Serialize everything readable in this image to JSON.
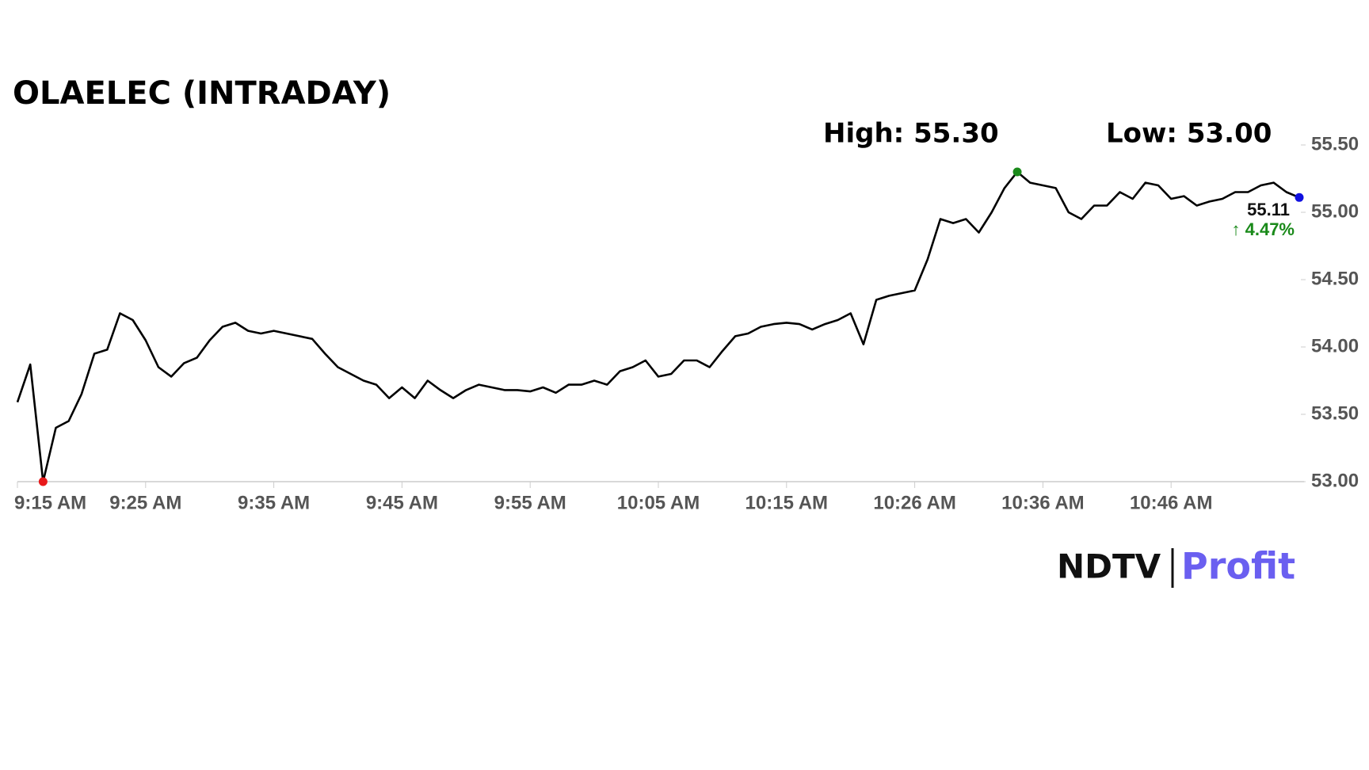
{
  "chart_data": {
    "type": "line",
    "title": "OLAELEC (INTRADAY)",
    "high_label": "High: 55.30",
    "low_label": "Low: 53.00",
    "change_label": "↑ 4.47%",
    "change_color": "#1a8a1a",
    "logo": {
      "left": "NDTV",
      "right": "Profit"
    },
    "xlim": [
      0,
      100
    ],
    "xticks": [
      {
        "value": 0,
        "label": "9:15 AM"
      },
      {
        "value": 10,
        "label": "9:25 AM"
      },
      {
        "value": 20,
        "label": "9:35 AM"
      },
      {
        "value": 30,
        "label": "9:45 AM"
      },
      {
        "value": 40,
        "label": "9:55 AM"
      },
      {
        "value": 50,
        "label": "10:05 AM"
      },
      {
        "value": 60,
        "label": "10:15 AM"
      },
      {
        "value": 70,
        "label": "10:26 AM"
      },
      {
        "value": 80,
        "label": "10:36 AM"
      },
      {
        "value": 90,
        "label": "10:46 AM"
      }
    ],
    "ylim": [
      53,
      55.5
    ],
    "yticks": [
      {
        "value": 53,
        "label": "53.00"
      },
      {
        "value": 53.5,
        "label": "53.50"
      },
      {
        "value": 54,
        "label": "54.00"
      },
      {
        "value": 54.5,
        "label": "54.50"
      },
      {
        "value": 55,
        "label": "55.00"
      },
      {
        "value": 55.5,
        "label": "55.50"
      }
    ],
    "series": [
      {
        "color": "#000000",
        "values": [
          53.59,
          53.87,
          53.0,
          53.4,
          53.45,
          53.65,
          53.95,
          53.98,
          54.25,
          54.2,
          54.05,
          53.85,
          53.78,
          53.88,
          53.92,
          54.05,
          54.15,
          54.18,
          54.12,
          54.1,
          54.12,
          54.1,
          54.08,
          54.06,
          53.95,
          53.85,
          53.8,
          53.75,
          53.72,
          53.62,
          53.7,
          53.62,
          53.75,
          53.68,
          53.62,
          53.68,
          53.72,
          53.7,
          53.68,
          53.68,
          53.67,
          53.7,
          53.66,
          53.72,
          53.72,
          53.75,
          53.72,
          53.82,
          53.85,
          53.9,
          53.78,
          53.8,
          53.9,
          53.9,
          53.85,
          53.97,
          54.08,
          54.1,
          54.15,
          54.17,
          54.18,
          54.17,
          54.13,
          54.17,
          54.2,
          54.25,
          54.02,
          54.35,
          54.38,
          54.4,
          54.42,
          54.65,
          54.95,
          54.92,
          54.95,
          54.85,
          55.0,
          55.18,
          55.3,
          55.22,
          55.2,
          55.18,
          55.0,
          54.95,
          55.05,
          55.05,
          55.15,
          55.1,
          55.22,
          55.2,
          55.1,
          55.12,
          55.05,
          55.08,
          55.1,
          55.15,
          55.15,
          55.2,
          55.22,
          55.15,
          55.11
        ]
      }
    ],
    "markers": {
      "low": {
        "index": 2,
        "color": "#e8191a"
      },
      "high": {
        "index": 78,
        "color": "#1a8a1a"
      },
      "last": {
        "index": 100,
        "color": "#1010e0"
      }
    }
  }
}
